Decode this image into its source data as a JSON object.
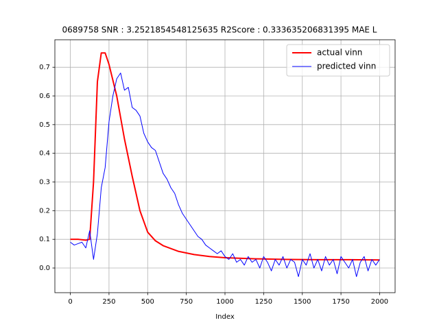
{
  "chart_data": {
    "type": "line",
    "title": "0689758  SNR : 3.2521854548125635 R2Score : 0.333635206831395 MAE L",
    "x_label": "Index",
    "xlim": [
      -100,
      2100
    ],
    "ylim": [
      -0.086,
      0.796
    ],
    "xticks": [
      0,
      250,
      500,
      750,
      1000,
      1250,
      1500,
      1750,
      2000
    ],
    "yticks": [
      {
        "value": 0,
        "label": "0.0"
      },
      0.1,
      0.2,
      0.3,
      0.4,
      0.5,
      0.6,
      0.7
    ],
    "grid": true,
    "legend": "upper right",
    "series": [
      {
        "name": "actual vinn",
        "color": "#ff0000",
        "x": [
          0,
          50,
          100,
          125,
          150,
          175,
          200,
          225,
          250,
          300,
          350,
          400,
          450,
          500,
          550,
          600,
          700,
          800,
          900,
          1000,
          1200,
          1400,
          1600,
          1800,
          2000
        ],
        "values": [
          0.1,
          0.1,
          0.097,
          0.1,
          0.3,
          0.65,
          0.75,
          0.75,
          0.71,
          0.6,
          0.45,
          0.32,
          0.2,
          0.125,
          0.095,
          0.078,
          0.058,
          0.047,
          0.04,
          0.036,
          0.032,
          0.03,
          0.029,
          0.029,
          0.028
        ]
      },
      {
        "name": "predicted vinn",
        "color": "#0000ff",
        "x": [
          0,
          25,
          50,
          75,
          100,
          125,
          150,
          175,
          200,
          225,
          250,
          275,
          300,
          325,
          350,
          375,
          400,
          425,
          450,
          475,
          500,
          525,
          550,
          575,
          600,
          625,
          650,
          675,
          700,
          725,
          750,
          775,
          800,
          825,
          850,
          875,
          900,
          925,
          950,
          975,
          1000,
          1025,
          1050,
          1075,
          1100,
          1125,
          1150,
          1175,
          1200,
          1225,
          1250,
          1275,
          1300,
          1325,
          1350,
          1375,
          1400,
          1425,
          1450,
          1475,
          1500,
          1525,
          1550,
          1575,
          1600,
          1625,
          1650,
          1675,
          1700,
          1725,
          1750,
          1775,
          1800,
          1825,
          1850,
          1875,
          1900,
          1925,
          1950,
          1975,
          2000
        ],
        "values": [
          0.09,
          0.08,
          0.085,
          0.09,
          0.07,
          0.13,
          0.03,
          0.12,
          0.28,
          0.35,
          0.51,
          0.6,
          0.66,
          0.68,
          0.62,
          0.63,
          0.56,
          0.55,
          0.53,
          0.47,
          0.44,
          0.42,
          0.41,
          0.37,
          0.33,
          0.31,
          0.28,
          0.26,
          0.22,
          0.19,
          0.17,
          0.15,
          0.13,
          0.11,
          0.1,
          0.08,
          0.07,
          0.06,
          0.05,
          0.06,
          0.04,
          0.03,
          0.05,
          0.02,
          0.03,
          0.01,
          0.04,
          0.02,
          0.03,
          0.0,
          0.04,
          0.02,
          -0.01,
          0.03,
          0.01,
          0.04,
          0.0,
          0.03,
          0.02,
          -0.03,
          0.03,
          0.01,
          0.05,
          0.0,
          0.03,
          -0.01,
          0.04,
          0.01,
          0.03,
          -0.02,
          0.04,
          0.02,
          0.0,
          0.03,
          -0.03,
          0.02,
          0.04,
          -0.01,
          0.03,
          0.01,
          0.03
        ]
      }
    ]
  }
}
